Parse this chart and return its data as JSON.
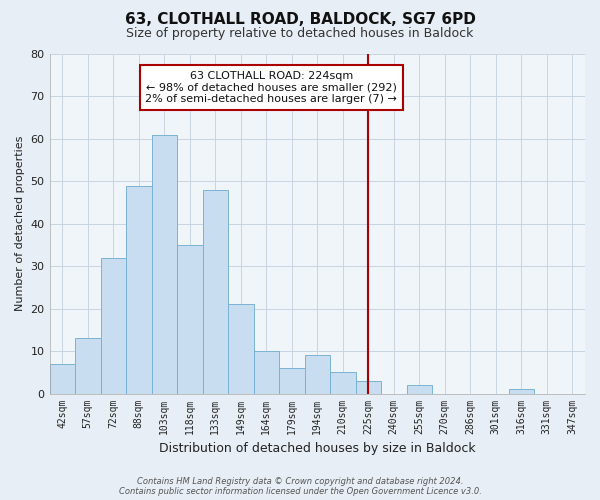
{
  "title": "63, CLOTHALL ROAD, BALDOCK, SG7 6PD",
  "subtitle": "Size of property relative to detached houses in Baldock",
  "xlabel": "Distribution of detached houses by size in Baldock",
  "ylabel": "Number of detached properties",
  "bin_labels": [
    "42sqm",
    "57sqm",
    "72sqm",
    "88sqm",
    "103sqm",
    "118sqm",
    "133sqm",
    "149sqm",
    "164sqm",
    "179sqm",
    "194sqm",
    "210sqm",
    "225sqm",
    "240sqm",
    "255sqm",
    "270sqm",
    "286sqm",
    "301sqm",
    "316sqm",
    "331sqm",
    "347sqm"
  ],
  "bar_heights": [
    7,
    13,
    32,
    49,
    61,
    35,
    48,
    21,
    10,
    6,
    9,
    5,
    3,
    0,
    2,
    0,
    0,
    0,
    1,
    0,
    0
  ],
  "bar_color": "#c8ddf0",
  "bar_edgecolor": "#7ab3d6",
  "vline_x_idx": 12,
  "vline_color": "#aa0000",
  "annotation_title": "63 CLOTHALL ROAD: 224sqm",
  "annotation_line1": "← 98% of detached houses are smaller (292)",
  "annotation_line2": "2% of semi-detached houses are larger (7) →",
  "annotation_box_facecolor": "#ffffff",
  "annotation_box_edgecolor": "#aa0000",
  "ylim": [
    0,
    80
  ],
  "yticks": [
    0,
    10,
    20,
    30,
    40,
    50,
    60,
    70,
    80
  ],
  "footer_line1": "Contains HM Land Registry data © Crown copyright and database right 2024.",
  "footer_line2": "Contains public sector information licensed under the Open Government Licence v3.0.",
  "bg_color": "#e8eef5",
  "plot_bg_color": "#f0f5fa",
  "grid_color": "#c8d4e0"
}
